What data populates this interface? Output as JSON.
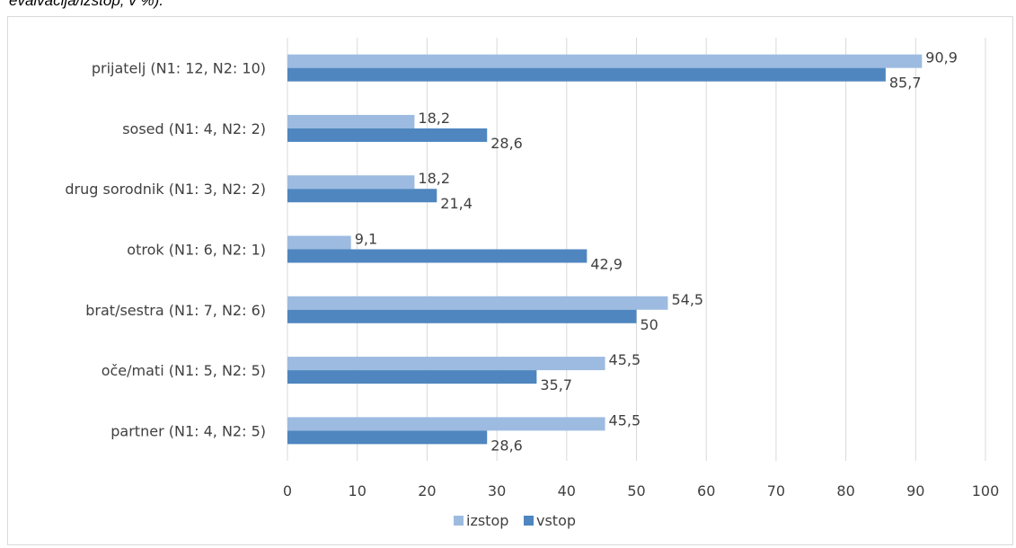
{
  "caption": "evalvacija/izstop; v %).",
  "chart_data": {
    "type": "bar",
    "orientation": "horizontal",
    "categories": [
      "prijatelj (N1: 12, N2: 10)",
      "sosed (N1: 4, N2: 2)",
      "drug sorodnik (N1: 3, N2: 2)",
      "otrok (N1: 6, N2: 1)",
      "brat/sestra (N1: 7, N2: 6)",
      "oče/mati (N1: 5, N2: 5)",
      "partner (N1: 4, N2: 5)"
    ],
    "series": [
      {
        "name": "izstop",
        "color": "#9dbbe0",
        "values": [
          90.9,
          18.2,
          18.2,
          9.1,
          54.5,
          45.5,
          45.5
        ],
        "labels": [
          "90,9",
          "18,2",
          "18,2",
          "9,1",
          "54,5",
          "45,5",
          "45,5"
        ]
      },
      {
        "name": "vstop",
        "color": "#4f86bf",
        "values": [
          85.7,
          28.6,
          21.4,
          42.9,
          50,
          35.7,
          28.6
        ],
        "labels": [
          "85,7",
          "28,6",
          "21,4",
          "42,9",
          "50",
          "35,7",
          "28,6"
        ]
      }
    ],
    "x_ticks": [
      "0",
      "10",
      "20",
      "30",
      "40",
      "50",
      "60",
      "70",
      "80",
      "90",
      "100"
    ],
    "xlim": [
      0,
      100
    ],
    "grid": true,
    "legend_position": "bottom",
    "grid_color": "#d9d9d9"
  }
}
